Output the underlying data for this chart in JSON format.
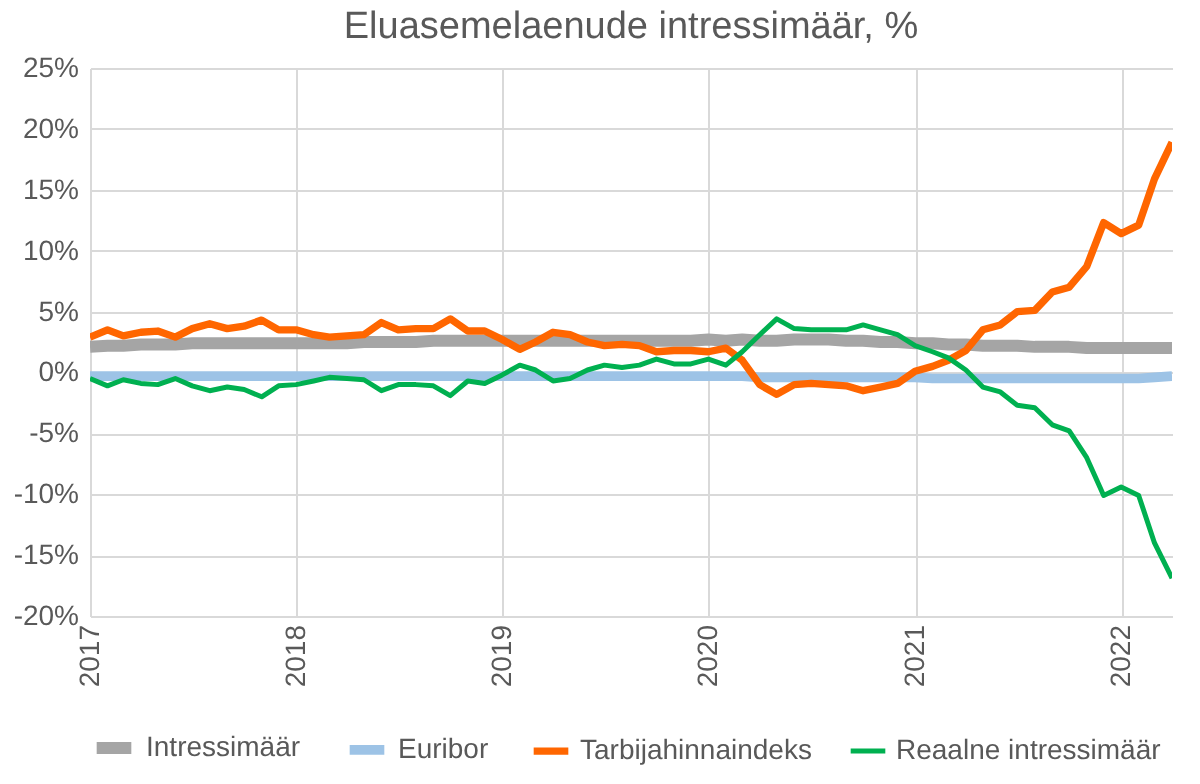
{
  "chart_data": {
    "type": "line",
    "title": "Eluasemelaenude intressimäär, %",
    "x": [
      "2017-01",
      "2017-02",
      "2017-03",
      "2017-04",
      "2017-05",
      "2017-06",
      "2017-07",
      "2017-08",
      "2017-09",
      "2017-10",
      "2017-11",
      "2017-12",
      "2018-01",
      "2018-02",
      "2018-03",
      "2018-04",
      "2018-05",
      "2018-06",
      "2018-07",
      "2018-08",
      "2018-09",
      "2018-10",
      "2018-11",
      "2018-12",
      "2019-01",
      "2019-02",
      "2019-03",
      "2019-04",
      "2019-05",
      "2019-06",
      "2019-07",
      "2019-08",
      "2019-09",
      "2019-10",
      "2019-11",
      "2019-12",
      "2020-01",
      "2020-02",
      "2020-03",
      "2020-04",
      "2020-05",
      "2020-06",
      "2020-07",
      "2020-08",
      "2020-09",
      "2020-10",
      "2020-11",
      "2020-12",
      "2021-01",
      "2021-02",
      "2021-03",
      "2021-04",
      "2021-05",
      "2021-06",
      "2021-07",
      "2021-08",
      "2021-09",
      "2021-10",
      "2021-11",
      "2021-12",
      "2022-01",
      "2022-02",
      "2022-03",
      "2022-04"
    ],
    "series": [
      {
        "name": "Intressimäär",
        "color": "#a5a5a5",
        "values": [
          2.1,
          2.2,
          2.2,
          2.3,
          2.3,
          2.3,
          2.4,
          2.4,
          2.4,
          2.4,
          2.4,
          2.4,
          2.4,
          2.4,
          2.4,
          2.4,
          2.5,
          2.5,
          2.5,
          2.5,
          2.6,
          2.6,
          2.6,
          2.6,
          2.6,
          2.6,
          2.6,
          2.6,
          2.6,
          2.6,
          2.6,
          2.6,
          2.6,
          2.6,
          2.6,
          2.6,
          2.7,
          2.6,
          2.7,
          2.6,
          2.6,
          2.7,
          2.7,
          2.7,
          2.6,
          2.6,
          2.5,
          2.5,
          2.4,
          2.4,
          2.3,
          2.3,
          2.2,
          2.2,
          2.2,
          2.1,
          2.1,
          2.1,
          2.0,
          2.0,
          2.0,
          2.0,
          2.0,
          2.0
        ]
      },
      {
        "name": "Euribor",
        "color": "#9dc3e6",
        "values": [
          -0.3,
          -0.3,
          -0.3,
          -0.3,
          -0.3,
          -0.3,
          -0.3,
          -0.3,
          -0.3,
          -0.3,
          -0.3,
          -0.3,
          -0.3,
          -0.3,
          -0.3,
          -0.3,
          -0.3,
          -0.3,
          -0.3,
          -0.3,
          -0.3,
          -0.3,
          -0.3,
          -0.3,
          -0.3,
          -0.3,
          -0.3,
          -0.3,
          -0.3,
          -0.3,
          -0.3,
          -0.3,
          -0.3,
          -0.3,
          -0.3,
          -0.3,
          -0.3,
          -0.3,
          -0.3,
          -0.4,
          -0.4,
          -0.4,
          -0.4,
          -0.4,
          -0.4,
          -0.4,
          -0.4,
          -0.4,
          -0.4,
          -0.5,
          -0.5,
          -0.5,
          -0.5,
          -0.5,
          -0.5,
          -0.5,
          -0.5,
          -0.5,
          -0.5,
          -0.5,
          -0.5,
          -0.5,
          -0.4,
          -0.3
        ]
      },
      {
        "name": "Tarbijahinnaindeks",
        "color": "#ff6600",
        "values": [
          2.9,
          3.5,
          3.0,
          3.3,
          3.4,
          2.9,
          3.6,
          4.0,
          3.6,
          3.8,
          4.3,
          3.5,
          3.5,
          3.1,
          2.9,
          3.0,
          3.1,
          4.1,
          3.5,
          3.6,
          3.6,
          4.4,
          3.4,
          3.4,
          2.7,
          1.9,
          2.5,
          3.3,
          3.1,
          2.5,
          2.2,
          2.3,
          2.2,
          1.7,
          1.8,
          1.8,
          1.7,
          2.0,
          1.0,
          -1.0,
          -1.8,
          -1.0,
          -0.9,
          -1.0,
          -1.1,
          -1.5,
          -1.2,
          -0.9,
          0.1,
          0.5,
          1.0,
          1.8,
          3.5,
          3.9,
          5.0,
          5.1,
          6.6,
          7.0,
          8.7,
          12.3,
          11.4,
          12.1,
          15.9,
          18.9
        ]
      },
      {
        "name": "Reaalne intressimäär",
        "color": "#00b050",
        "values": [
          -0.5,
          -1.1,
          -0.6,
          -0.9,
          -1.0,
          -0.5,
          -1.1,
          -1.5,
          -1.2,
          -1.4,
          -2.0,
          -1.1,
          -1.0,
          -0.7,
          -0.4,
          -0.5,
          -0.6,
          -1.5,
          -1.0,
          -1.0,
          -1.1,
          -1.9,
          -0.7,
          -0.9,
          -0.2,
          0.6,
          0.2,
          -0.7,
          -0.5,
          0.2,
          0.6,
          0.4,
          0.6,
          1.1,
          0.7,
          0.7,
          1.1,
          0.6,
          1.7,
          3.1,
          4.4,
          3.6,
          3.5,
          3.5,
          3.5,
          3.9,
          3.5,
          3.1,
          2.2,
          1.7,
          1.2,
          0.2,
          -1.2,
          -1.6,
          -2.7,
          -2.9,
          -4.3,
          -4.8,
          -7.0,
          -10.1,
          -9.4,
          -10.1,
          -14.0,
          -16.9
        ]
      }
    ],
    "xlim": [
      "2017-01",
      "2022-04"
    ],
    "xticks": [
      "2017",
      "2018",
      "2019",
      "2020",
      "2021",
      "2022"
    ],
    "ylim": [
      -20,
      25
    ],
    "yticks": [
      {
        "value": -20,
        "label": "-20%"
      },
      {
        "value": -15,
        "label": "-15%"
      },
      {
        "value": -10,
        "label": "-10%"
      },
      {
        "value": -5,
        "label": "-5%"
      },
      {
        "value": 0,
        "label": "0%"
      },
      {
        "value": 5,
        "label": "5%"
      },
      {
        "value": 10,
        "label": "10%"
      },
      {
        "value": 15,
        "label": "15%"
      },
      {
        "value": 20,
        "label": "20%"
      },
      {
        "value": 25,
        "label": "25%"
      }
    ],
    "grid": true,
    "legend": "bottom",
    "marker": "none",
    "line_style": "solid"
  }
}
